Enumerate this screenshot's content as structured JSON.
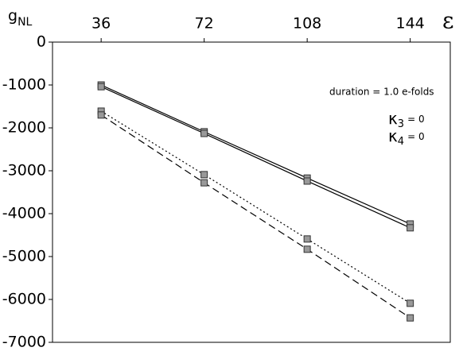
{
  "chart_data": {
    "type": "line",
    "xlabel": "ε",
    "ylabel": "g",
    "ylabel_sub": "NL",
    "annotations": [
      {
        "text": "duration = 1.0 e-folds"
      },
      {
        "symbol": "κ",
        "sub": "3",
        "text": "= 0"
      },
      {
        "symbol": "κ",
        "sub": "4",
        "text": "= 0"
      }
    ],
    "x": [
      36,
      72,
      108,
      144
    ],
    "xlim": [
      19,
      158
    ],
    "xticks": [
      36,
      72,
      108,
      144
    ],
    "ylim": [
      -7000,
      0
    ],
    "yticks": [
      0,
      -1000,
      -2000,
      -3000,
      -4000,
      -5000,
      -6000,
      -7000
    ],
    "series": [
      {
        "color": "#000000",
        "dash": "solid",
        "values": [
          -1000,
          -2090,
          -3170,
          -4240
        ]
      },
      {
        "color": "#000000",
        "dash": "solid",
        "values": [
          -1040,
          -2130,
          -3240,
          -4330
        ]
      },
      {
        "color": "#000000",
        "dash": "dotted",
        "values": [
          -1610,
          -3090,
          -4590,
          -6090
        ]
      },
      {
        "color": "#000000",
        "dash": "dashed",
        "values": [
          -1700,
          -3280,
          -4830,
          -6430
        ]
      }
    ],
    "marker_color": "#999999"
  }
}
